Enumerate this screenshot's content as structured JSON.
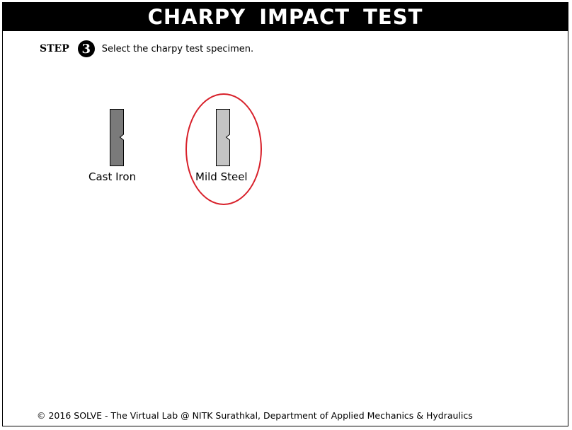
{
  "header": {
    "title": "CHARPY  IMPACT  TEST"
  },
  "step": {
    "label": "STEP",
    "number": "3",
    "instruction": "Select the charpy test specimen."
  },
  "specimens": [
    {
      "label": "Cast Iron",
      "color": "#7a7a7a",
      "selected": false
    },
    {
      "label": "Mild Steel",
      "color": "#c4c4c4",
      "selected": true
    }
  ],
  "highlight_color": "#d8202a",
  "footer": {
    "text": "© 2016 SOLVE - The Virtual Lab @ NITK Surathkal, Department of Applied Mechanics & Hydraulics"
  }
}
